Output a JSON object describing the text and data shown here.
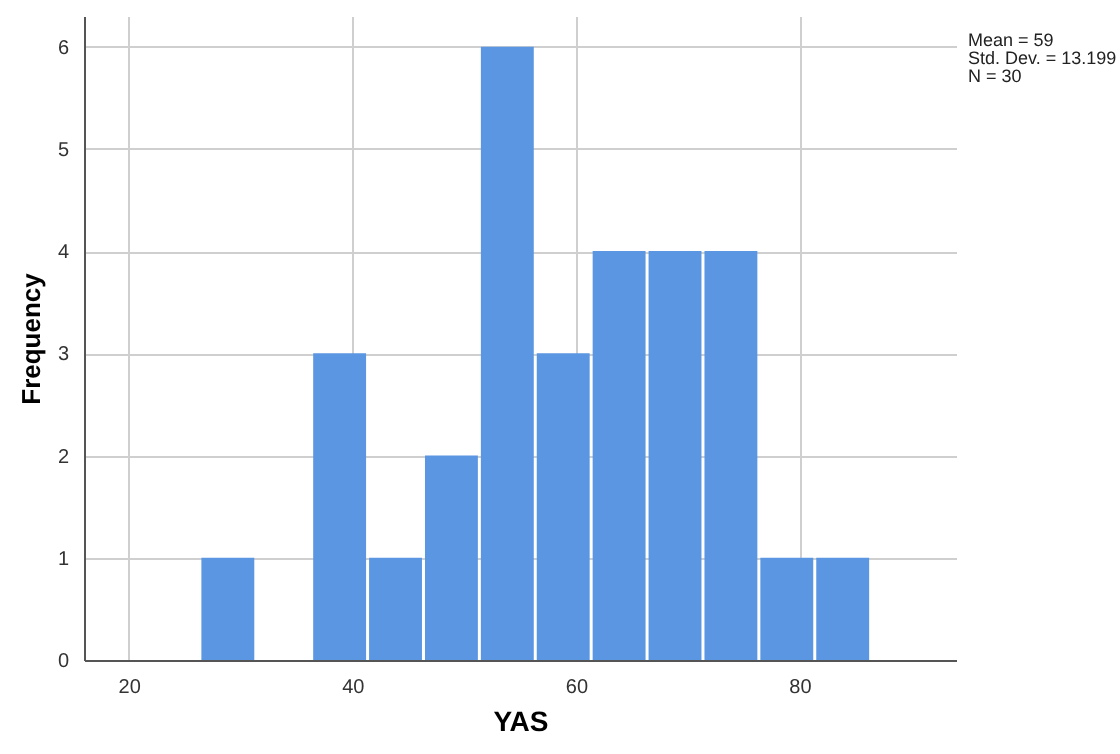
{
  "chart_data": {
    "type": "histogram",
    "xlabel": "YAS",
    "ylabel": "Frequency",
    "bins": [
      26.5,
      31.5,
      36.5,
      41.5,
      46.5,
      51.5,
      56.5,
      61.5,
      66.5,
      71.5,
      76.5,
      81.5,
      86.5
    ],
    "values": [
      1,
      0,
      3,
      1,
      2,
      6,
      3,
      4,
      4,
      4,
      1,
      1
    ],
    "color": "#5b96e3",
    "xlim": [
      16,
      94
    ],
    "xticks": [
      20,
      40,
      60,
      80
    ],
    "ylim": [
      0,
      6.3
    ],
    "yticks": [
      0,
      1,
      2,
      3,
      4,
      5,
      6
    ],
    "grid": true,
    "annotations": [
      "Mean = 59",
      "Std. Dev. = 13.199",
      "N = 30"
    ]
  }
}
